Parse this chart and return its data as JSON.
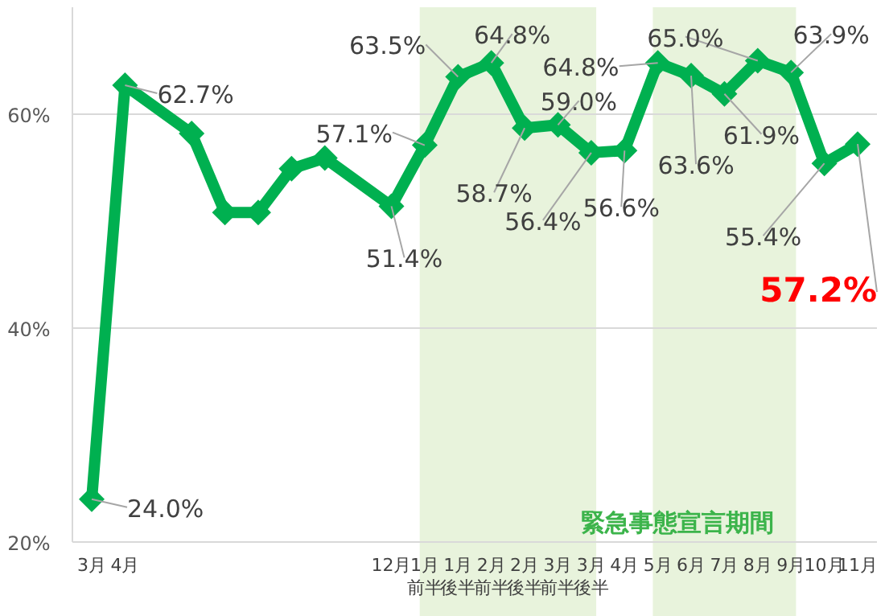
{
  "chart_data": {
    "type": "line",
    "categories": [
      "3月",
      "4月",
      null,
      null,
      null,
      null,
      null,
      null,
      null,
      "12月",
      "1月前半",
      "1月後半",
      "2月前半",
      "2月後半",
      "3月前半",
      "3月後半",
      "4月",
      "5月",
      "6月",
      "7月",
      "8月",
      "9月",
      "10月",
      "11月"
    ],
    "series": [
      {
        "color": "#00b050",
        "values": [
          24.0,
          62.7,
          null,
          58.2,
          50.8,
          50.8,
          54.9,
          55.9,
          null,
          51.4,
          57.1,
          63.5,
          64.8,
          58.7,
          59.0,
          56.4,
          56.6,
          64.8,
          63.6,
          61.9,
          65.0,
          63.9,
          55.4,
          57.2
        ],
        "value_labels": [
          "24.0%",
          "62.7%",
          null,
          null,
          null,
          null,
          null,
          null,
          null,
          "51.4%",
          "57.1%",
          "63.5%",
          "64.8%",
          "58.7%",
          "59.0%",
          "56.4%",
          "56.6%",
          "64.8%",
          "63.6%",
          "61.9%",
          "65.0%",
          "63.9%",
          "55.4%",
          "57.2%"
        ]
      }
    ],
    "ylim": [
      20,
      70
    ],
    "yticks": [
      {
        "value": 20,
        "label": "20%"
      },
      {
        "value": 40,
        "label": "40%"
      },
      {
        "value": 60,
        "label": "60%"
      }
    ],
    "grid": "y",
    "marker": "diamond",
    "line_style": "solid",
    "bands": [
      {
        "axis": "x",
        "from": "1月前半",
        "to": "3月後半",
        "color": "#e8f3dc"
      },
      {
        "axis": "x",
        "from": "5月",
        "to": "9月",
        "color": "#e8f3dc"
      }
    ],
    "annotations": [
      {
        "text": "緊急事態宣言期間"
      }
    ]
  }
}
